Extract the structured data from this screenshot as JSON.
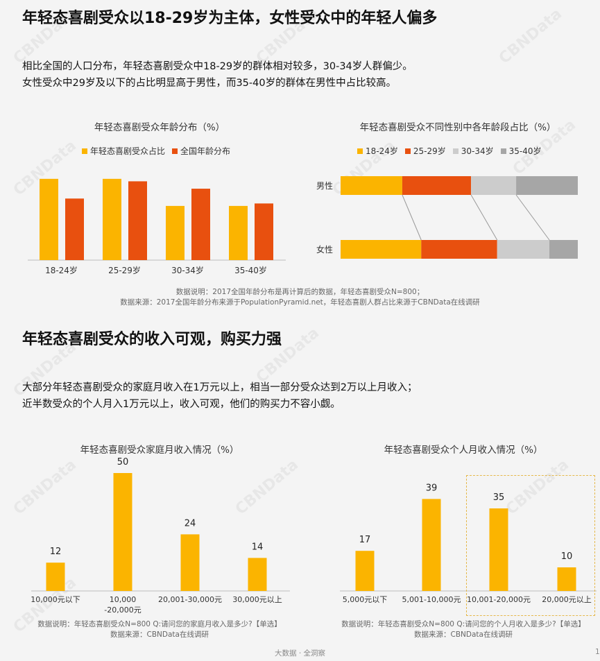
{
  "section1": {
    "heading": "年轻态喜剧受众以18-29岁为主体，女性受众中的年轻人偏多",
    "line1": "相比全国的人口分布，年轻态喜剧受众中18-29岁的群体相对较多，30-34岁人群偏少。",
    "line2": "女性受众中29岁及以下的占比明显高于男性，而35-40岁的群体在男性中占比较高。",
    "note1": "数据说明：2017全国年龄分布是再计算后的数据，年轻态喜剧受众N=800；",
    "note2": "数据来源：2017全国年龄分布来源于PopulationPyramid.net，年轻态喜剧人群占比来源于CBNData在线调研"
  },
  "section2": {
    "heading": "年轻态喜剧受众的收入可观，购买力强",
    "line1": "大部分年轻态喜剧受众的家庭月收入在1万元以上，相当一部分受众达到2万以上月收入；",
    "line2": "近半数受众的个人月入1万元以上，收入可观，他们的购买力不容小觑。",
    "note_left1": "数据说明：年轻态喜剧受众N=800  Q:请问您的家庭月收入是多少?【单选】",
    "note_left2": "数据来源：CBNData在线调研",
    "note_right1": "数据说明：年轻态喜剧受众N=800  Q:请问您的个人月收入是多少?【单选】",
    "note_right2": "数据来源：CBNData在线调研"
  },
  "footer": "大数据 · 全洞察",
  "page_number": "1",
  "watermark": "CBNData",
  "colors": {
    "orange": "#FBB400",
    "red": "#E8500F",
    "lightgray": "#CCCCCC",
    "gray": "#A6A6A6",
    "highlight": "#E5B84A"
  },
  "chart_data": [
    {
      "type": "bar",
      "title": "年轻态喜剧受众年龄分布（%）",
      "categories": [
        "18-24岁",
        "25-29岁",
        "30-34岁",
        "35-40岁"
      ],
      "series": [
        {
          "name": "年轻态喜剧受众占比",
          "values": [
            33,
            33,
            22,
            22
          ]
        },
        {
          "name": "全国年龄分布",
          "values": [
            25,
            32,
            29,
            23
          ]
        }
      ],
      "ylim": [
        0,
        40
      ],
      "legend": "top",
      "grid": false
    },
    {
      "type": "bar",
      "stacked": "horizontal-percent",
      "title": "年轻态喜剧受众不同性别中各年龄段占比（%）",
      "categories": [
        "男性",
        "女性"
      ],
      "series": [
        {
          "name": "18-24岁",
          "values": [
            26,
            34
          ]
        },
        {
          "name": "25-29岁",
          "values": [
            29,
            32
          ]
        },
        {
          "name": "30-34岁",
          "values": [
            19,
            22
          ]
        },
        {
          "name": "35-40岁",
          "values": [
            26,
            12
          ]
        }
      ],
      "legend": "top",
      "grid": false
    },
    {
      "type": "bar",
      "title": "年轻态喜剧受众家庭月收入情况（%）",
      "categories": [
        "10,000元以下",
        "10,000\n-20,000元",
        "20,001-30,000元",
        "30,000元以上"
      ],
      "values": [
        12,
        50,
        24,
        14
      ],
      "ylim": [
        0,
        55
      ]
    },
    {
      "type": "bar",
      "title": "年轻态喜剧受众个人月收入情况（%）",
      "categories": [
        "5,000元以下",
        "5,001-10,000元",
        "10,001-20,000元",
        "20,000元以上"
      ],
      "values": [
        17,
        39,
        35,
        10
      ],
      "ylim": [
        0,
        55
      ],
      "highlight_category": "10,001-20,000元"
    }
  ]
}
